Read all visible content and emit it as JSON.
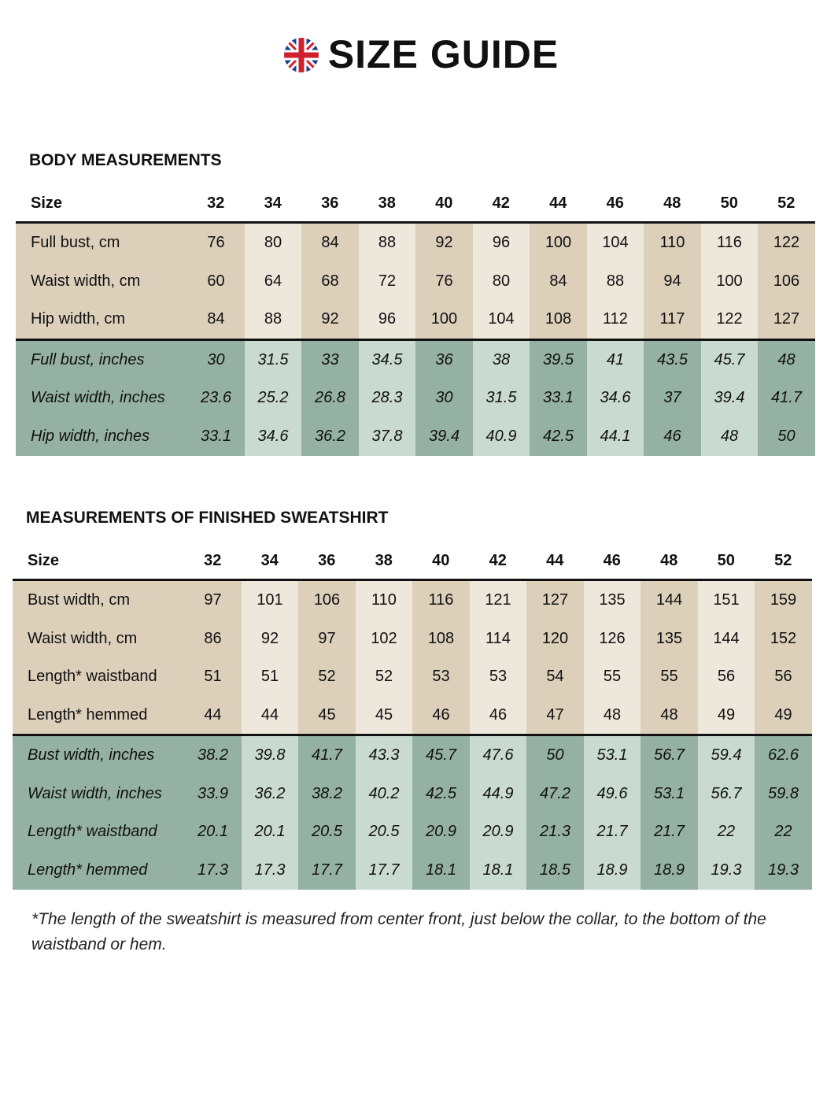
{
  "header": {
    "title": "SIZE GUIDE"
  },
  "tables": [
    {
      "title": "BODY MEASUREMENTS",
      "header": [
        "Size",
        32,
        34,
        36,
        38,
        40,
        42,
        44,
        46,
        48,
        50,
        52
      ],
      "cm_rows": [
        [
          "Full bust, cm",
          76,
          80,
          84,
          88,
          92,
          96,
          100,
          104,
          110,
          116,
          122
        ],
        [
          "Waist width, cm",
          60,
          64,
          68,
          72,
          76,
          80,
          84,
          88,
          94,
          100,
          106
        ],
        [
          "Hip width, cm",
          84,
          88,
          92,
          96,
          100,
          104,
          108,
          112,
          117,
          122,
          127
        ]
      ],
      "inch_rows": [
        [
          "Full bust, inches",
          30,
          31.5,
          33,
          34.5,
          36,
          38,
          39.5,
          41,
          43.5,
          45.7,
          48
        ],
        [
          "Waist width, inches",
          23.6,
          25.2,
          26.8,
          28.3,
          30,
          31.5,
          33.1,
          34.6,
          37,
          39.4,
          41.7
        ],
        [
          "Hip width, inches",
          33.1,
          34.6,
          36.2,
          37.8,
          39.4,
          40.9,
          42.5,
          44.1,
          46,
          48,
          50
        ]
      ]
    },
    {
      "title": "MEASUREMENTS OF FINISHED SWEATSHIRT",
      "header": [
        "Size",
        32,
        34,
        36,
        38,
        40,
        42,
        44,
        46,
        48,
        50,
        52
      ],
      "cm_rows": [
        [
          "Bust width, cm",
          97,
          101,
          106,
          110,
          116,
          121,
          127,
          135,
          144,
          151,
          159
        ],
        [
          "Waist width, cm",
          86,
          92,
          97,
          102,
          108,
          114,
          120,
          126,
          135,
          144,
          152
        ],
        [
          "Length* waistband",
          51,
          51,
          52,
          52,
          53,
          53,
          54,
          55,
          55,
          56,
          56
        ],
        [
          "Length* hemmed",
          44,
          44,
          45,
          45,
          46,
          46,
          47,
          48,
          48,
          49,
          49
        ]
      ],
      "inch_rows": [
        [
          "Bust width, inches",
          38.2,
          39.8,
          41.7,
          43.3,
          45.7,
          47.6,
          50,
          53.1,
          56.7,
          59.4,
          62.6
        ],
        [
          "Waist width, inches",
          33.9,
          36.2,
          38.2,
          40.2,
          42.5,
          44.9,
          47.2,
          49.6,
          53.1,
          56.7,
          59.8
        ],
        [
          "Length* waistband",
          20.1,
          20.1,
          20.5,
          20.5,
          20.9,
          20.9,
          21.3,
          21.7,
          21.7,
          22,
          22
        ],
        [
          "Length* hemmed",
          17.3,
          17.3,
          17.7,
          17.7,
          18.1,
          18.1,
          18.5,
          18.9,
          18.9,
          19.3,
          19.3
        ]
      ]
    }
  ],
  "footnote": "*The length of the sweatshirt is measured from center front, just below the collar, to the bottom of the waistband or hem."
}
